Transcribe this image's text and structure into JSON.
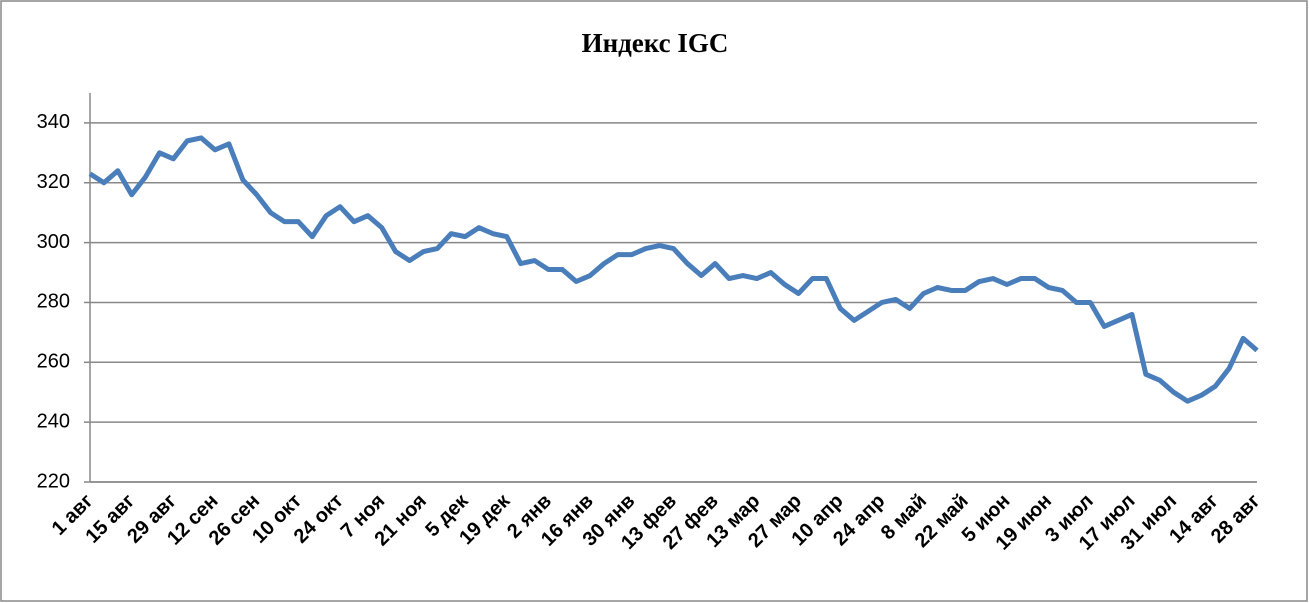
{
  "chart_data": {
    "type": "line",
    "title": "Индекс IGC",
    "categories": [
      "1 авг",
      null,
      null,
      "15 авг",
      null,
      null,
      "29 авг",
      null,
      null,
      "12 сен",
      null,
      null,
      "26 сен",
      null,
      null,
      "10 окт",
      null,
      null,
      "24 окт",
      null,
      null,
      "7 ноя",
      null,
      null,
      "21 ноя",
      null,
      null,
      "5 дек",
      null,
      null,
      "19 дек",
      null,
      null,
      "2 янв",
      null,
      null,
      "16 янв",
      null,
      null,
      "30 янв",
      null,
      null,
      "13 фев",
      null,
      null,
      "27 фев",
      null,
      null,
      "13 мар",
      null,
      null,
      "27 мар",
      null,
      null,
      "10 апр",
      null,
      null,
      "24 апр",
      null,
      null,
      "8 май",
      null,
      null,
      "22 май",
      null,
      null,
      "5 июн",
      null,
      null,
      "19 июн",
      null,
      null,
      "3 июл",
      null,
      null,
      "17 июл",
      null,
      null,
      "31 июл",
      null,
      null,
      "14 авг",
      null,
      null,
      "28 авг"
    ],
    "series": [
      {
        "name": "Индекс IGC",
        "color": "#4a7ebb",
        "values": [
          323,
          320,
          324,
          316,
          322,
          330,
          328,
          334,
          335,
          331,
          333,
          321,
          316,
          310,
          307,
          307,
          302,
          309,
          312,
          307,
          309,
          305,
          297,
          294,
          297,
          298,
          303,
          302,
          305,
          303,
          302,
          293,
          294,
          291,
          291,
          287,
          289,
          293,
          296,
          296,
          298,
          299,
          298,
          293,
          289,
          293,
          288,
          289,
          288,
          290,
          286,
          283,
          288,
          288,
          278,
          274,
          277,
          280,
          281,
          278,
          283,
          285,
          284,
          284,
          287,
          288,
          286,
          288,
          288,
          285,
          284,
          280,
          280,
          272,
          274,
          276,
          256,
          254,
          250,
          247,
          249,
          252,
          258,
          268,
          264
        ]
      }
    ],
    "ylim": [
      220,
      350
    ],
    "yticks": [
      220,
      240,
      260,
      280,
      300,
      320,
      340
    ],
    "grid": true
  }
}
